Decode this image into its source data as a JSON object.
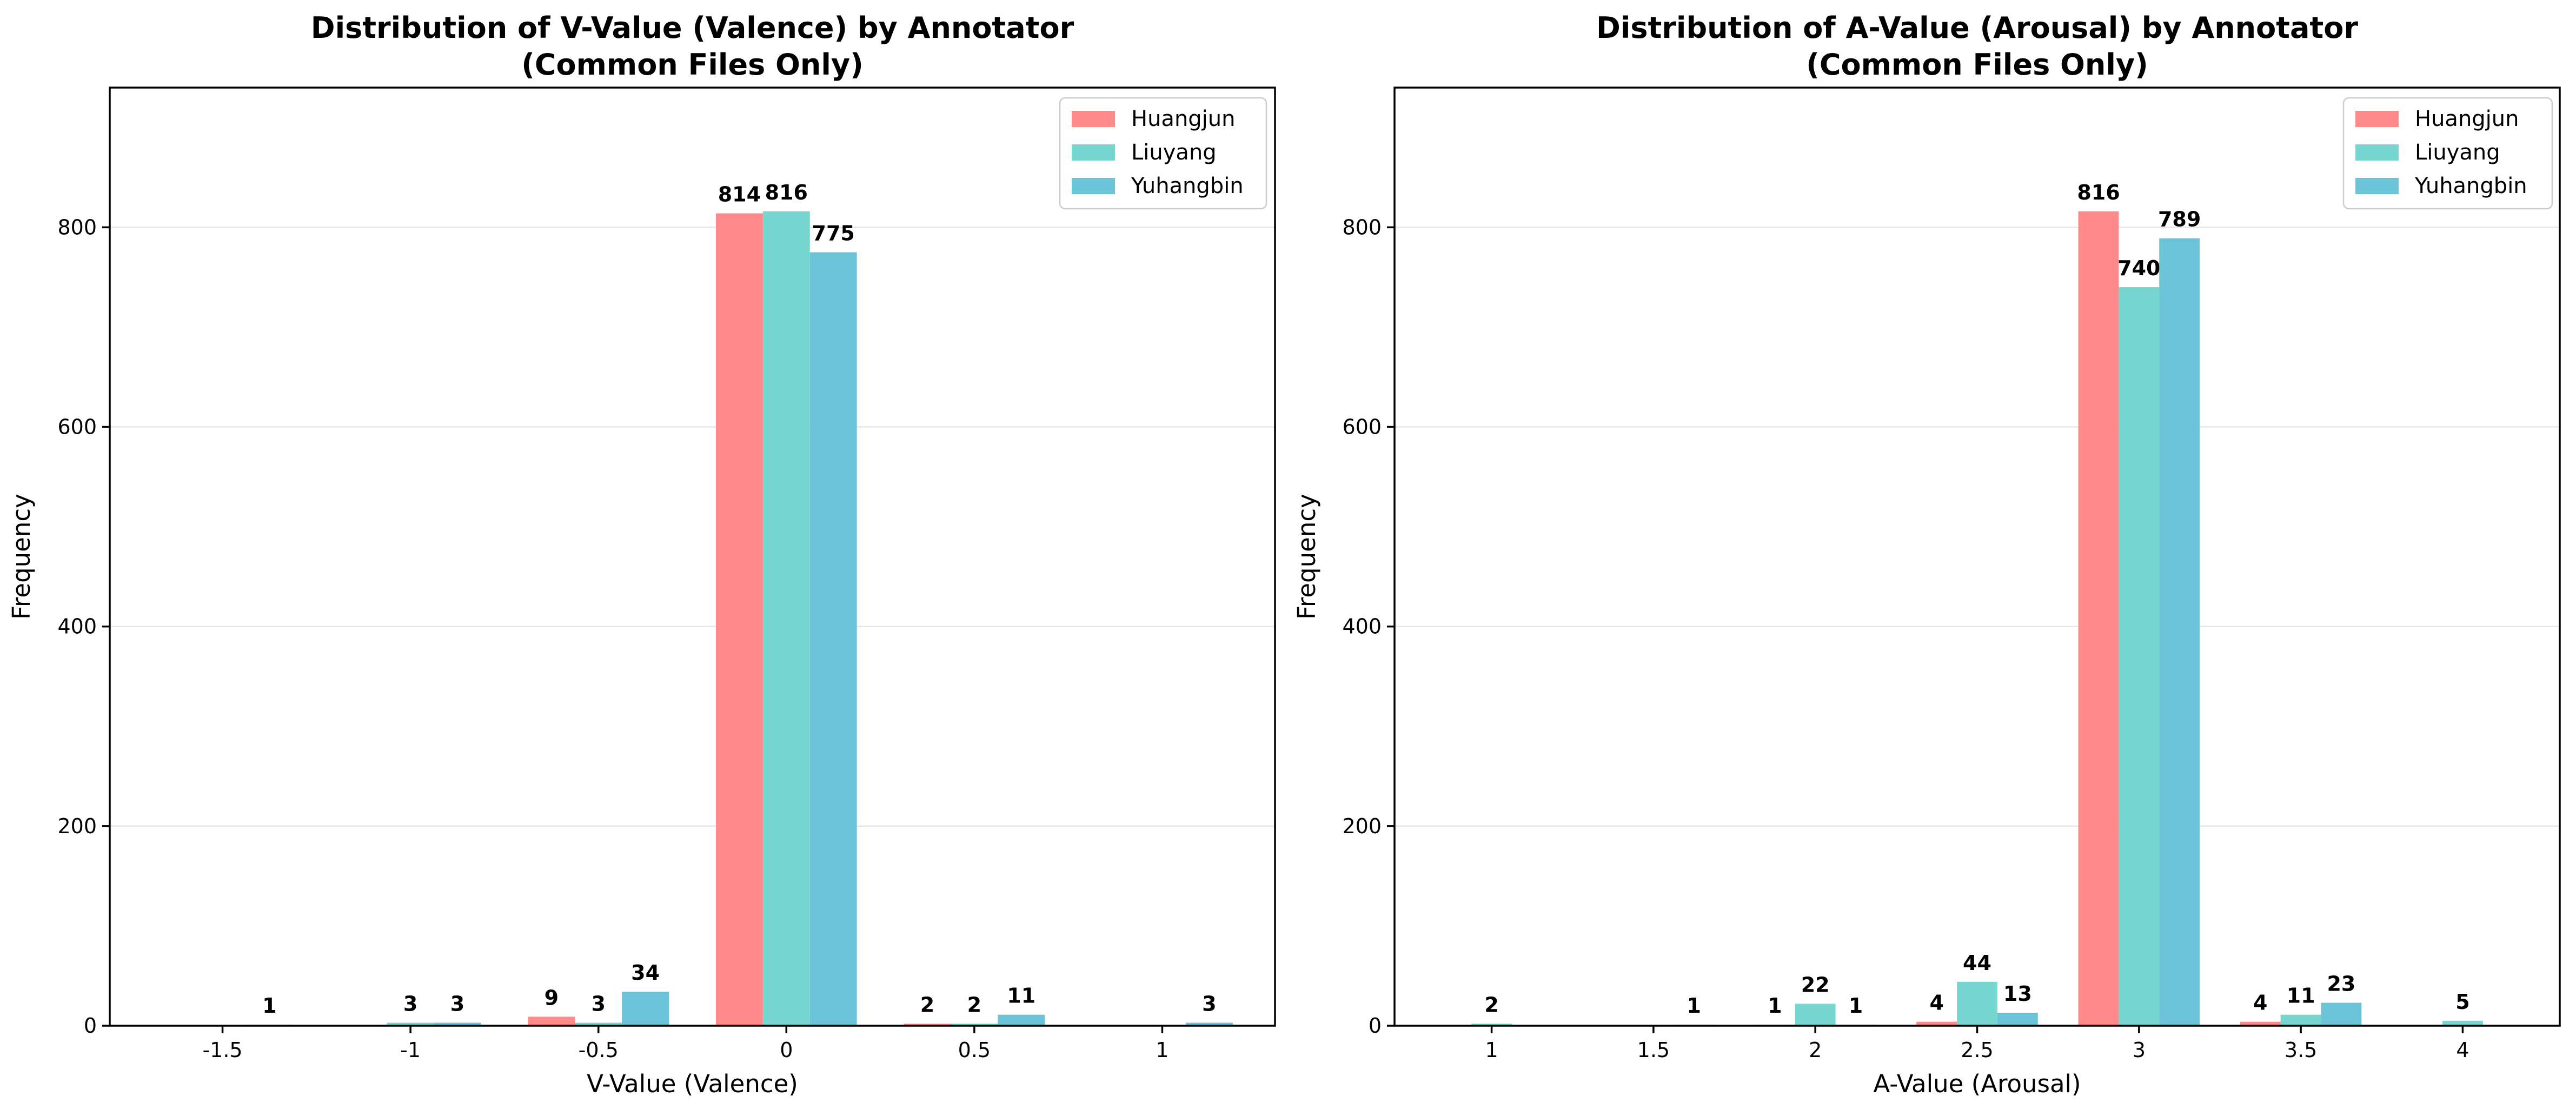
{
  "chart_data": [
    {
      "type": "bar",
      "title_lines": [
        "Distribution of V-Value (Valence) by Annotator",
        "(Common Files Only)"
      ],
      "xlabel": "V-Value (Valence)",
      "ylabel": "Frequency",
      "categories": [
        "-1.5",
        "-1",
        "-0.5",
        "0",
        "0.5",
        "1"
      ],
      "yticks": [
        0,
        200,
        400,
        600,
        800
      ],
      "ylim": [
        0,
        940
      ],
      "grid": "y",
      "legend_position": "top-right",
      "series": [
        {
          "name": "Huangjun",
          "color": "#FF8A8A",
          "values": [
            0,
            0,
            9,
            814,
            2,
            0
          ]
        },
        {
          "name": "Liuyang",
          "color": "#76D7D0",
          "values": [
            0,
            3,
            3,
            816,
            2,
            0
          ]
        },
        {
          "name": "Yuhangbin",
          "color": "#6BC4D8",
          "values": [
            1,
            3,
            34,
            775,
            11,
            3
          ]
        }
      ]
    },
    {
      "type": "bar",
      "title_lines": [
        "Distribution of A-Value (Arousal) by Annotator",
        "(Common Files Only)"
      ],
      "xlabel": "A-Value (Arousal)",
      "ylabel": "Frequency",
      "categories": [
        "1",
        "1.5",
        "2",
        "2.5",
        "3",
        "3.5",
        "4"
      ],
      "yticks": [
        0,
        200,
        400,
        600,
        800
      ],
      "ylim": [
        0,
        940
      ],
      "grid": "y",
      "legend_position": "top-right",
      "series": [
        {
          "name": "Huangjun",
          "color": "#FF8A8A",
          "values": [
            0,
            0,
            1,
            4,
            816,
            4,
            0
          ]
        },
        {
          "name": "Liuyang",
          "color": "#76D7D0",
          "values": [
            2,
            0,
            22,
            44,
            740,
            11,
            5
          ]
        },
        {
          "name": "Yuhangbin",
          "color": "#6BC4D8",
          "values": [
            0,
            1,
            1,
            13,
            789,
            23,
            0
          ]
        }
      ]
    }
  ]
}
